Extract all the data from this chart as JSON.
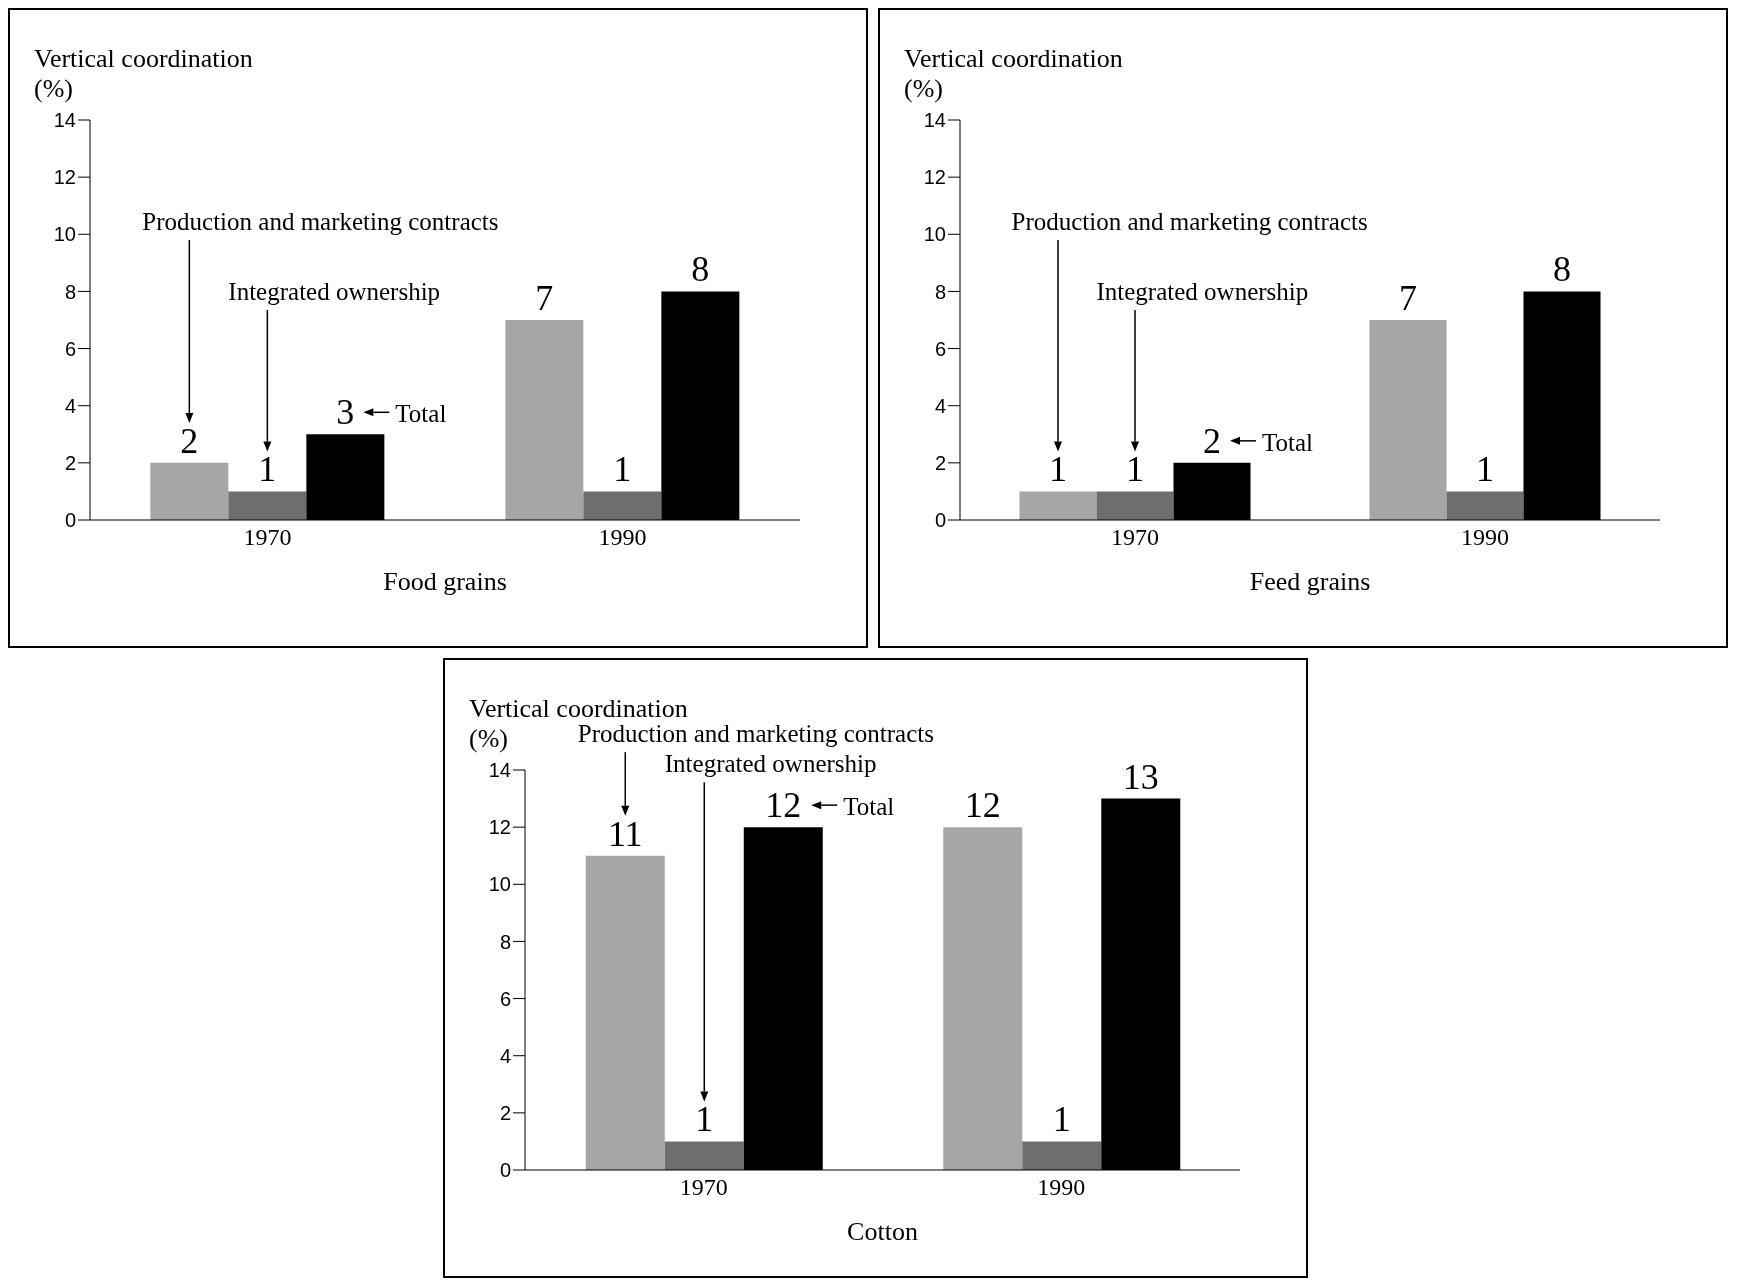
{
  "chart_data": [
    {
      "type": "bar",
      "xlabel": "Food grains",
      "ylabel": "Vertical coordination (%)",
      "categories": [
        "1970",
        "1990"
      ],
      "series": [
        {
          "color": "#a6a6a6",
          "values": [
            2,
            7
          ]
        },
        {
          "color": "#6e6e6e",
          "values": [
            1,
            1
          ]
        },
        {
          "name": "Total",
          "color": "#000000",
          "values": [
            3,
            8
          ]
        }
      ],
      "ylim": [
        0,
        14
      ],
      "yticks": [
        0,
        2,
        4,
        6,
        8,
        10,
        12,
        14
      ],
      "data_labels": true,
      "annotations": [
        "Production and marketing contracts",
        "Integrated ownership"
      ]
    },
    {
      "type": "bar",
      "xlabel": "Feed grains",
      "ylabel": "Vertical coordination (%)",
      "categories": [
        "1970",
        "1990"
      ],
      "series": [
        {
          "color": "#a6a6a6",
          "values": [
            1,
            7
          ]
        },
        {
          "color": "#6e6e6e",
          "values": [
            1,
            1
          ]
        },
        {
          "name": "Total",
          "color": "#000000",
          "values": [
            2,
            8
          ]
        }
      ],
      "ylim": [
        0,
        14
      ],
      "yticks": [
        0,
        2,
        4,
        6,
        8,
        10,
        12,
        14
      ],
      "data_labels": true,
      "annotations": [
        "Production and marketing contracts",
        "Integrated ownership"
      ]
    },
    {
      "type": "bar",
      "xlabel": "Cotton",
      "ylabel": "Vertical coordination (%)",
      "categories": [
        "1970",
        "1990"
      ],
      "series": [
        {
          "color": "#a6a6a6",
          "values": [
            11,
            12
          ]
        },
        {
          "color": "#6e6e6e",
          "values": [
            1,
            1
          ]
        },
        {
          "name": "Total",
          "color": "#000000",
          "values": [
            12,
            13
          ]
        }
      ],
      "ylim": [
        0,
        14
      ],
      "yticks": [
        0,
        2,
        4,
        6,
        8,
        10,
        12,
        14
      ],
      "data_labels": true,
      "annotations": [
        "Production and marketing contracts",
        "Integrated ownership"
      ]
    }
  ]
}
